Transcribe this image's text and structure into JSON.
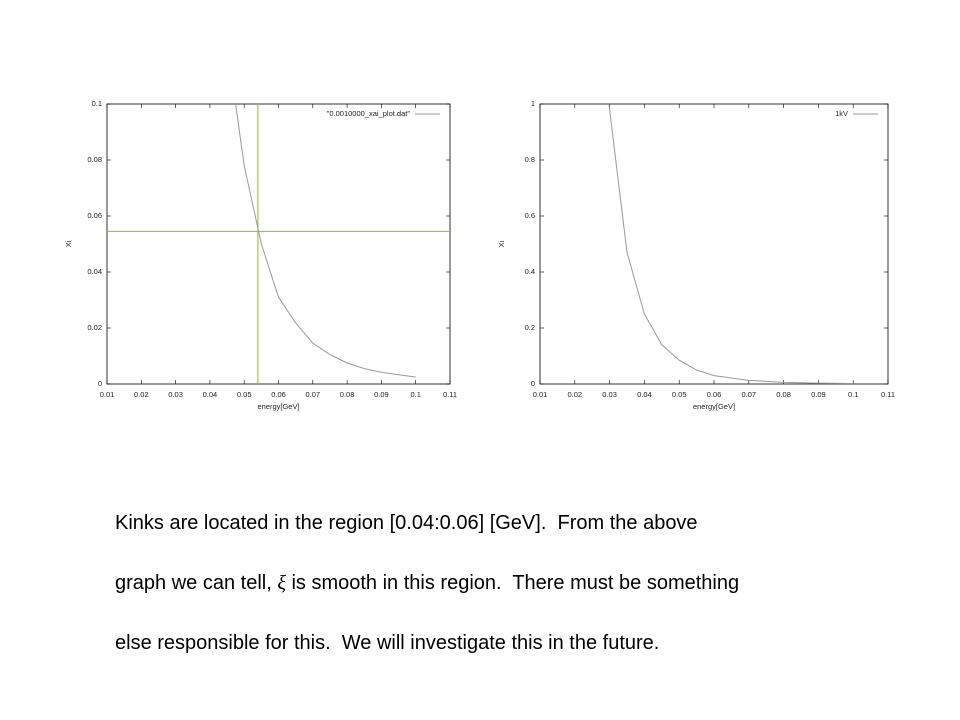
{
  "chart_data": [
    {
      "type": "line",
      "xlabel": "energy[GeV]",
      "ylabel": "Xi",
      "x": [
        0.0475,
        0.05,
        0.055,
        0.06,
        0.065,
        0.07,
        0.075,
        0.08,
        0.085,
        0.09,
        0.095,
        0.1
      ],
      "series": [
        {
          "name": "\"0.0010000_xai_plot.dat\"",
          "color": "#999999",
          "values": [
            0.1,
            0.078,
            0.05,
            0.031,
            0.0218,
            0.0146,
            0.0105,
            0.0075,
            0.0055,
            0.0042,
            0.0033,
            0.0025
          ]
        }
      ],
      "xlim": [
        0.01,
        0.11
      ],
      "ylim": [
        0,
        0.1
      ],
      "xticks": [
        0.01,
        0.02,
        0.03,
        0.04,
        0.05,
        0.06,
        0.07,
        0.08,
        0.09,
        0.1,
        0.11
      ],
      "yticks": [
        0,
        0.02,
        0.04,
        0.06,
        0.08,
        0.1
      ],
      "legend": "upper right",
      "vline": 0.054,
      "hline": 0.0545,
      "marker_color": "#8cbf1a"
    },
    {
      "type": "line",
      "xlabel": "energy[GeV]",
      "ylabel": "Xi",
      "x": [
        0.0298,
        0.035,
        0.04,
        0.045,
        0.05,
        0.055,
        0.06,
        0.07,
        0.08,
        0.09,
        0.1
      ],
      "series": [
        {
          "name": "1kV",
          "color": "#999999",
          "values": [
            1,
            0.47,
            0.25,
            0.14,
            0.085,
            0.05,
            0.03,
            0.013,
            0.006,
            0.003,
            0.002
          ]
        }
      ],
      "xlim": [
        0.01,
        0.11
      ],
      "ylim": [
        0,
        1
      ],
      "xticks": [
        0.01,
        0.02,
        0.03,
        0.04,
        0.05,
        0.06,
        0.07,
        0.08,
        0.09,
        0.1,
        0.11
      ],
      "yticks": [
        0,
        0.2,
        0.4,
        0.6,
        0.8,
        1
      ],
      "legend": "upper right"
    }
  ],
  "text": {
    "line1": "Kinks are located in the region [0.04:0.06] [GeV].  From the above",
    "line2a": "graph we can tell, ",
    "symbol": "ξ",
    "line2b": " is smooth in this region.  There must be something",
    "line3": "else responsible for this.  We will investigate this in the future."
  }
}
